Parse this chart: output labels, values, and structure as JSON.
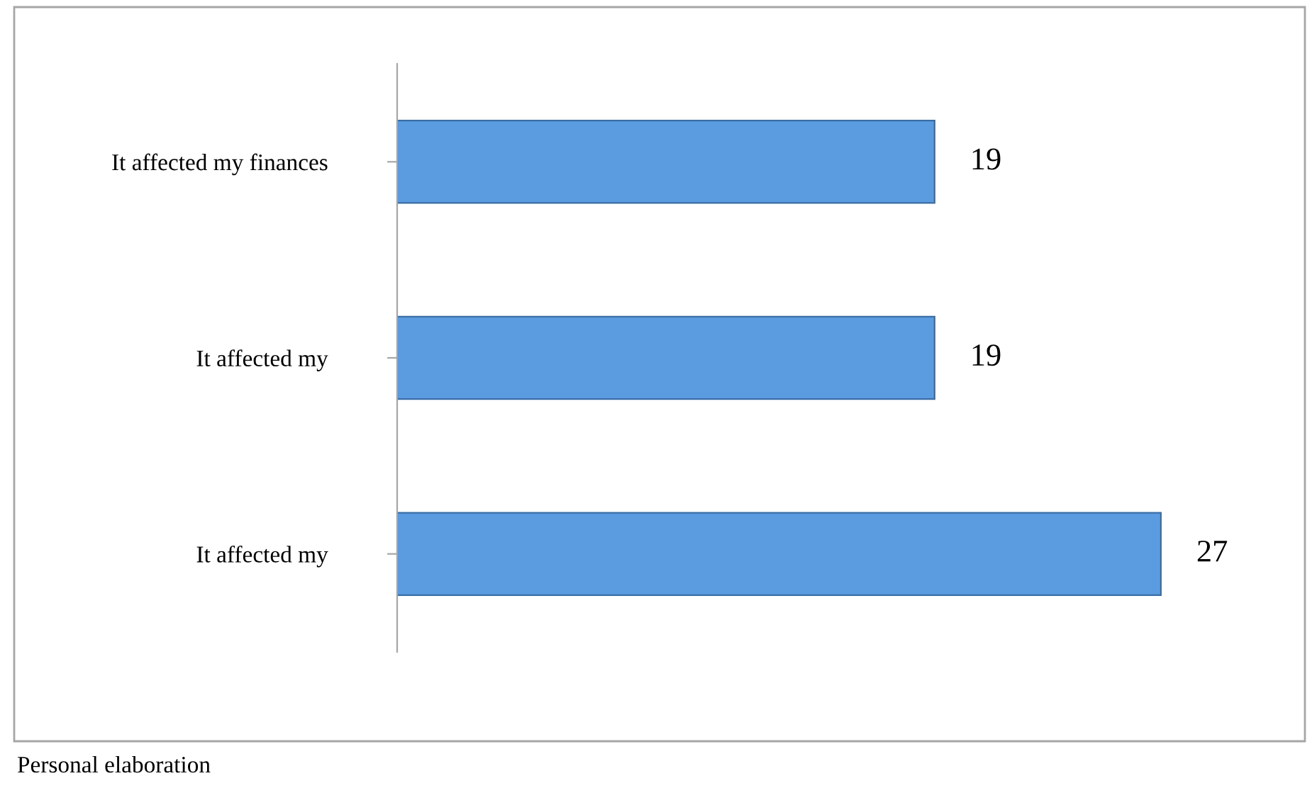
{
  "chart_data": {
    "type": "bar",
    "orientation": "horizontal",
    "categories": [
      "It affected my finances",
      "It affected my",
      "It affected my"
    ],
    "values": [
      19,
      19,
      27
    ],
    "color": "#5b9be0",
    "data_labels": true,
    "grid": false,
    "legend": false,
    "tick_labels": "y",
    "annotations": [
      "Personal elaboration"
    ]
  }
}
